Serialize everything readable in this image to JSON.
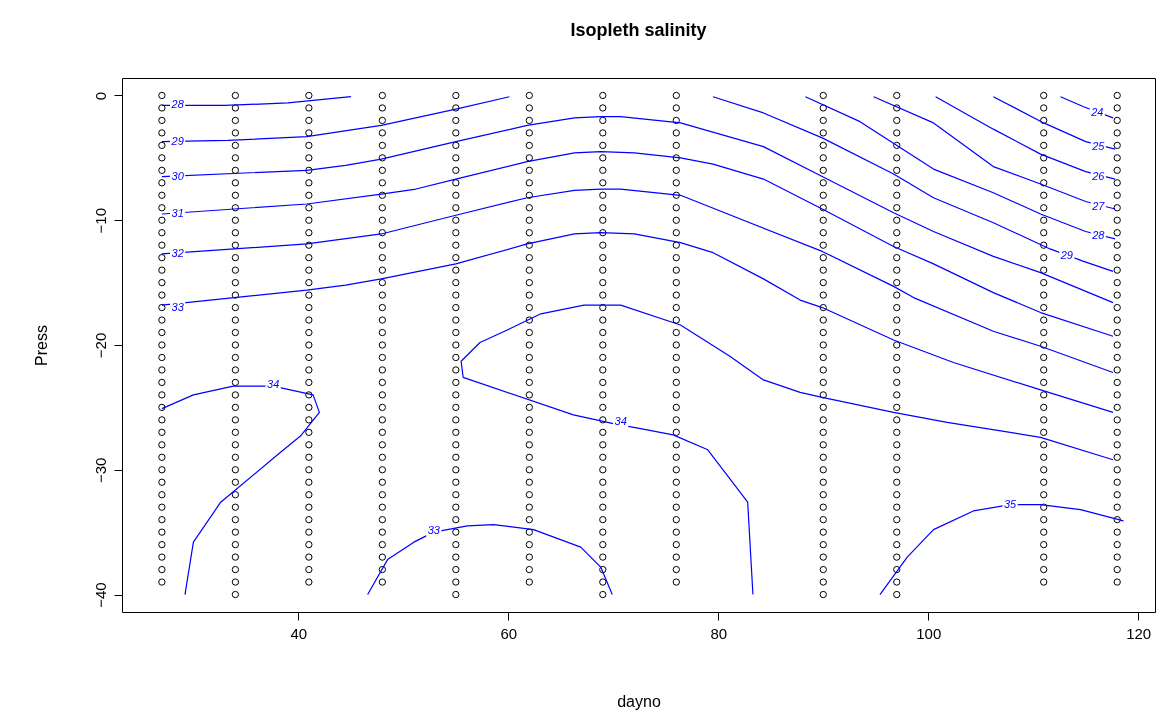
{
  "chart_data": {
    "type": "scatter",
    "title": "Isopleth salinity",
    "xlabel": "dayno",
    "ylabel": "Press",
    "xlim": [
      23.2,
      121.6
    ],
    "ylim": [
      -41.4,
      1.4
    ],
    "xticks": [
      40,
      60,
      80,
      100,
      120
    ],
    "yticks": [
      0,
      -10,
      -20,
      -30,
      -40
    ],
    "grid": false,
    "legend": false,
    "marker": "circle",
    "series": [
      {
        "color": "#000000",
        "x": [
          27,
          27,
          27,
          27,
          27,
          27,
          27,
          27,
          27,
          27,
          27,
          27,
          27,
          27,
          27,
          27,
          27,
          27,
          27,
          27,
          27,
          27,
          27,
          27,
          27,
          27,
          27,
          27,
          27,
          27,
          27,
          27,
          27,
          27,
          27,
          27,
          27,
          27,
          27,
          27
        ],
        "values": [
          0,
          -1,
          -2,
          -3,
          -4,
          -5,
          -6,
          -7,
          -8,
          -9,
          -10,
          -11,
          -12,
          -13,
          -14,
          -15,
          -16,
          -17,
          -18,
          -19,
          -20,
          -21,
          -22,
          -23,
          -24,
          -25,
          -26,
          -27,
          -28,
          -29,
          -30,
          -31,
          -32,
          -33,
          -34,
          -35,
          -36,
          -37,
          -38,
          -39
        ]
      },
      {
        "color": "#000000",
        "x": [
          34,
          34,
          34,
          34,
          34,
          34,
          34,
          34,
          34,
          34,
          34,
          34,
          34,
          34,
          34,
          34,
          34,
          34,
          34,
          34,
          34,
          34,
          34,
          34,
          34,
          34,
          34,
          34,
          34,
          34,
          34,
          34,
          34,
          34,
          34,
          34,
          34,
          34,
          34,
          34,
          34
        ],
        "values": [
          0,
          -1,
          -2,
          -3,
          -4,
          -5,
          -6,
          -7,
          -8,
          -9,
          -10,
          -11,
          -12,
          -13,
          -14,
          -15,
          -16,
          -17,
          -18,
          -19,
          -20,
          -21,
          -22,
          -23,
          -24,
          -25,
          -26,
          -27,
          -28,
          -29,
          -30,
          -31,
          -32,
          -33,
          -34,
          -35,
          -36,
          -37,
          -38,
          -39,
          -40
        ]
      },
      {
        "color": "#000000",
        "x": [
          41,
          41,
          41,
          41,
          41,
          41,
          41,
          41,
          41,
          41,
          41,
          41,
          41,
          41,
          41,
          41,
          41,
          41,
          41,
          41,
          41,
          41,
          41,
          41,
          41,
          41,
          41,
          41,
          41,
          41,
          41,
          41,
          41,
          41,
          41,
          41,
          41,
          41,
          41,
          41
        ],
        "values": [
          0,
          -1,
          -2,
          -3,
          -4,
          -5,
          -6,
          -7,
          -8,
          -9,
          -10,
          -11,
          -12,
          -13,
          -14,
          -15,
          -16,
          -17,
          -18,
          -19,
          -20,
          -21,
          -22,
          -23,
          -24,
          -25,
          -26,
          -27,
          -28,
          -29,
          -30,
          -31,
          -32,
          -33,
          -34,
          -35,
          -36,
          -37,
          -38,
          -39
        ]
      },
      {
        "color": "#000000",
        "x": [
          48,
          48,
          48,
          48,
          48,
          48,
          48,
          48,
          48,
          48,
          48,
          48,
          48,
          48,
          48,
          48,
          48,
          48,
          48,
          48,
          48,
          48,
          48,
          48,
          48,
          48,
          48,
          48,
          48,
          48,
          48,
          48,
          48,
          48,
          48,
          48,
          48,
          48,
          48,
          48
        ],
        "values": [
          0,
          -1,
          -2,
          -3,
          -4,
          -5,
          -6,
          -7,
          -8,
          -9,
          -10,
          -11,
          -12,
          -13,
          -14,
          -15,
          -16,
          -17,
          -18,
          -19,
          -20,
          -21,
          -22,
          -23,
          -24,
          -25,
          -26,
          -27,
          -28,
          -29,
          -30,
          -31,
          -32,
          -33,
          -34,
          -35,
          -36,
          -37,
          -38,
          -39
        ]
      },
      {
        "color": "#000000",
        "x": [
          55,
          55,
          55,
          55,
          55,
          55,
          55,
          55,
          55,
          55,
          55,
          55,
          55,
          55,
          55,
          55,
          55,
          55,
          55,
          55,
          55,
          55,
          55,
          55,
          55,
          55,
          55,
          55,
          55,
          55,
          55,
          55,
          55,
          55,
          55,
          55,
          55,
          55,
          55,
          55,
          55
        ],
        "values": [
          0,
          -1,
          -2,
          -3,
          -4,
          -5,
          -6,
          -7,
          -8,
          -9,
          -10,
          -11,
          -12,
          -13,
          -14,
          -15,
          -16,
          -17,
          -18,
          -19,
          -20,
          -21,
          -22,
          -23,
          -24,
          -25,
          -26,
          -27,
          -28,
          -29,
          -30,
          -31,
          -32,
          -33,
          -34,
          -35,
          -36,
          -37,
          -38,
          -39,
          -40
        ]
      },
      {
        "color": "#000000",
        "x": [
          62,
          62,
          62,
          62,
          62,
          62,
          62,
          62,
          62,
          62,
          62,
          62,
          62,
          62,
          62,
          62,
          62,
          62,
          62,
          62,
          62,
          62,
          62,
          62,
          62,
          62,
          62,
          62,
          62,
          62,
          62,
          62,
          62,
          62,
          62,
          62,
          62,
          62,
          62,
          62
        ],
        "values": [
          0,
          -1,
          -2,
          -3,
          -4,
          -5,
          -6,
          -7,
          -8,
          -9,
          -10,
          -11,
          -12,
          -13,
          -14,
          -15,
          -16,
          -17,
          -18,
          -19,
          -20,
          -21,
          -22,
          -23,
          -24,
          -25,
          -26,
          -27,
          -28,
          -29,
          -30,
          -31,
          -32,
          -33,
          -34,
          -35,
          -36,
          -37,
          -38,
          -39
        ]
      },
      {
        "color": "#000000",
        "x": [
          69,
          69,
          69,
          69,
          69,
          69,
          69,
          69,
          69,
          69,
          69,
          69,
          69,
          69,
          69,
          69,
          69,
          69,
          69,
          69,
          69,
          69,
          69,
          69,
          69,
          69,
          69,
          69,
          69,
          69,
          69,
          69,
          69,
          69,
          69,
          69,
          69,
          69,
          69,
          69,
          69
        ],
        "values": [
          0,
          -1,
          -2,
          -3,
          -4,
          -5,
          -6,
          -7,
          -8,
          -9,
          -10,
          -11,
          -12,
          -13,
          -14,
          -15,
          -16,
          -17,
          -18,
          -19,
          -20,
          -21,
          -22,
          -23,
          -24,
          -25,
          -26,
          -27,
          -28,
          -29,
          -30,
          -31,
          -32,
          -33,
          -34,
          -35,
          -36,
          -37,
          -38,
          -39,
          -40
        ]
      },
      {
        "color": "#000000",
        "x": [
          76,
          76,
          76,
          76,
          76,
          76,
          76,
          76,
          76,
          76,
          76,
          76,
          76,
          76,
          76,
          76,
          76,
          76,
          76,
          76,
          76,
          76,
          76,
          76,
          76,
          76,
          76,
          76,
          76,
          76,
          76,
          76,
          76,
          76,
          76,
          76,
          76,
          76,
          76,
          76
        ],
        "values": [
          0,
          -1,
          -2,
          -3,
          -4,
          -5,
          -6,
          -7,
          -8,
          -9,
          -10,
          -11,
          -12,
          -13,
          -14,
          -15,
          -16,
          -17,
          -18,
          -19,
          -20,
          -21,
          -22,
          -23,
          -24,
          -25,
          -26,
          -27,
          -28,
          -29,
          -30,
          -31,
          -32,
          -33,
          -34,
          -35,
          -36,
          -37,
          -38,
          -39
        ]
      },
      {
        "color": "#000000",
        "x": [
          90,
          90,
          90,
          90,
          90,
          90,
          90,
          90,
          90,
          90,
          90,
          90,
          90,
          90,
          90,
          90,
          90,
          90,
          90,
          90,
          90,
          90,
          90,
          90,
          90,
          90,
          90,
          90,
          90,
          90,
          90,
          90,
          90,
          90,
          90,
          90,
          90,
          90,
          90,
          90,
          90
        ],
        "values": [
          0,
          -1,
          -2,
          -3,
          -4,
          -5,
          -6,
          -7,
          -8,
          -9,
          -10,
          -11,
          -12,
          -13,
          -14,
          -15,
          -16,
          -17,
          -18,
          -19,
          -20,
          -21,
          -22,
          -23,
          -24,
          -25,
          -26,
          -27,
          -28,
          -29,
          -30,
          -31,
          -32,
          -33,
          -34,
          -35,
          -36,
          -37,
          -38,
          -39,
          -40
        ]
      },
      {
        "color": "#000000",
        "x": [
          97,
          97,
          97,
          97,
          97,
          97,
          97,
          97,
          97,
          97,
          97,
          97,
          97,
          97,
          97,
          97,
          97,
          97,
          97,
          97,
          97,
          97,
          97,
          97,
          97,
          97,
          97,
          97,
          97,
          97,
          97,
          97,
          97,
          97,
          97,
          97,
          97,
          97,
          97,
          97,
          97
        ],
        "values": [
          0,
          -1,
          -2,
          -3,
          -4,
          -5,
          -6,
          -7,
          -8,
          -9,
          -10,
          -11,
          -12,
          -13,
          -14,
          -15,
          -16,
          -17,
          -18,
          -19,
          -20,
          -21,
          -22,
          -23,
          -24,
          -25,
          -26,
          -27,
          -28,
          -29,
          -30,
          -31,
          -32,
          -33,
          -34,
          -35,
          -36,
          -37,
          -38,
          -39,
          -40
        ]
      },
      {
        "color": "#000000",
        "x": [
          111,
          111,
          111,
          111,
          111,
          111,
          111,
          111,
          111,
          111,
          111,
          111,
          111,
          111,
          111,
          111,
          111,
          111,
          111,
          111,
          111,
          111,
          111,
          111,
          111,
          111,
          111,
          111,
          111,
          111,
          111,
          111,
          111,
          111,
          111,
          111,
          111,
          111,
          111,
          111
        ],
        "values": [
          0,
          -1,
          -2,
          -3,
          -4,
          -5,
          -6,
          -7,
          -8,
          -9,
          -10,
          -11,
          -12,
          -13,
          -14,
          -15,
          -16,
          -17,
          -18,
          -19,
          -20,
          -21,
          -22,
          -23,
          -24,
          -25,
          -26,
          -27,
          -28,
          -29,
          -30,
          -31,
          -32,
          -33,
          -34,
          -35,
          -36,
          -37,
          -38,
          -39
        ]
      },
      {
        "color": "#000000",
        "x": [
          118,
          118,
          118,
          118,
          118,
          118,
          118,
          118,
          118,
          118,
          118,
          118,
          118,
          118,
          118,
          118,
          118,
          118,
          118,
          118,
          118,
          118,
          118,
          118,
          118,
          118,
          118,
          118,
          118,
          118,
          118,
          118,
          118,
          118,
          118,
          118,
          118,
          118,
          118,
          118
        ],
        "values": [
          0,
          -1,
          -2,
          -3,
          -4,
          -5,
          -6,
          -7,
          -8,
          -9,
          -10,
          -11,
          -12,
          -13,
          -14,
          -15,
          -16,
          -17,
          -18,
          -19,
          -20,
          -21,
          -22,
          -23,
          -24,
          -25,
          -26,
          -27,
          -28,
          -29,
          -30,
          -31,
          -32,
          -33,
          -34,
          -35,
          -36,
          -37,
          -38,
          -39
        ]
      },
      {
        "type": "line",
        "marker": "none",
        "color": "#0000ff",
        "x": [
          27,
          33,
          39,
          45
        ],
        "values": [
          -0.8,
          -0.8,
          -0.6,
          -0.1
        ]
      },
      {
        "type": "line",
        "marker": "none",
        "color": "#0000ff",
        "x": [
          27,
          33.3,
          40.8,
          47.9,
          55,
          60.1
        ],
        "values": [
          -3.7,
          -3.6,
          -3.3,
          -2.4,
          -1.1,
          -0.1
        ]
      },
      {
        "type": "line",
        "marker": "none",
        "color": "#0000ff",
        "x": [
          27,
          40.8,
          44.5,
          47.9,
          55,
          61.8,
          66.3,
          68.8,
          70.7,
          76.4,
          84.3,
          89.9,
          96.7,
          100.5,
          106.2,
          110.7,
          117.6
        ],
        "values": [
          -6.5,
          -6,
          -5.6,
          -5.1,
          -3.7,
          -2.4,
          -1.8,
          -1.7,
          -1.7,
          -2.2,
          -4.1,
          -6.5,
          -9.4,
          -10.9,
          -12.9,
          -14.2,
          -16.6
        ]
      },
      {
        "type": "line",
        "marker": "none",
        "color": "#0000ff",
        "x": [
          27,
          40.8,
          47.9,
          51.2,
          55,
          61.8,
          66.3,
          68.8,
          72,
          76.4,
          79.5,
          84.3,
          89.9,
          96.7,
          100.5,
          106.2,
          110.7,
          117.6
        ],
        "values": [
          -9.5,
          -8.7,
          -7.9,
          -7.5,
          -6.7,
          -5.3,
          -4.6,
          -4.5,
          -4.6,
          -5,
          -5.5,
          -6.7,
          -9.1,
          -12.1,
          -13.5,
          -15.8,
          -17.4,
          -19.3
        ]
      },
      {
        "type": "line",
        "marker": "none",
        "color": "#0000ff",
        "x": [
          27,
          40.8,
          47.9,
          51.2,
          55,
          61.8,
          66.3,
          68.8,
          70.7,
          76.4,
          89.9,
          96.7,
          98.6,
          106.2,
          110.7,
          117.6
        ],
        "values": [
          -12.7,
          -11.9,
          -11.1,
          -10.4,
          -9.6,
          -8.2,
          -7.6,
          -7.5,
          -7.5,
          -8,
          -12.5,
          -15.3,
          -16.2,
          -18.9,
          -20.1,
          -22.2
        ]
      },
      {
        "type": "line",
        "marker": "none",
        "color": "#0000ff",
        "x": [
          27,
          40.8,
          44.5,
          47.9,
          55,
          61.8,
          66.3,
          68.8,
          72,
          76.4,
          79.5,
          84.3,
          87.8,
          89.9,
          96.7,
          102.4,
          110.7,
          117.6
        ],
        "values": [
          -16.8,
          -15.6,
          -15.2,
          -14.7,
          -13.5,
          -11.9,
          -11.1,
          -11,
          -11.1,
          -11.8,
          -12.6,
          -14.7,
          -16.4,
          -17,
          -19.6,
          -21.4,
          -23.6,
          -25.4
        ]
      },
      {
        "type": "line",
        "marker": "none",
        "color": "#0000ff",
        "x": [
          83.3,
          82.8,
          79,
          75.7,
          72.6,
          70,
          66.2,
          55.7,
          55.5,
          57.3,
          59.9,
          63.1,
          67.2,
          68.8,
          70.7,
          76.4,
          81.1,
          84.3,
          87.8,
          89.9,
          96.7,
          101.8,
          110.7,
          117.6
        ],
        "values": [
          -40,
          -32.6,
          -28.4,
          -27.2,
          -26.7,
          -26.3,
          -25.6,
          -22.6,
          -21.3,
          -19.8,
          -18.8,
          -17.5,
          -16.8,
          -16.8,
          -16.8,
          -18.4,
          -20.9,
          -22.8,
          -23.8,
          -24.2,
          -25.4,
          -26.2,
          -27.4,
          -29.2
        ]
      },
      {
        "type": "line",
        "marker": "none",
        "color": "#0000ff",
        "x": [
          27,
          30,
          33.8,
          37.6,
          41.4,
          42,
          40.2,
          38.3,
          32.6,
          30,
          29.2
        ],
        "values": [
          -25.1,
          -24,
          -23.3,
          -23.3,
          -24,
          -25.4,
          -27.3,
          -28.6,
          -32.6,
          -35.8,
          -40
        ]
      },
      {
        "type": "line",
        "marker": "none",
        "color": "#0000ff",
        "x": [
          46.6,
          48.5,
          51,
          52.9,
          56.1,
          58.6,
          62.4,
          66.9,
          68.8,
          69.9
        ],
        "values": [
          -40,
          -37.2,
          -35.8,
          -35,
          -34.5,
          -34.4,
          -34.8,
          -36.2,
          -37.8,
          -40
        ]
      },
      {
        "type": "line",
        "marker": "none",
        "color": "#0000ff",
        "x": [
          95.4,
          98,
          100.5,
          104.3,
          107.8,
          110.7,
          114.5,
          118.6
        ],
        "values": [
          -40,
          -37,
          -34.8,
          -33.3,
          -32.8,
          -32.8,
          -33.2,
          -34.1
        ]
      },
      {
        "type": "line",
        "marker": "none",
        "color": "#0000ff",
        "x": [
          112.6,
          114.8,
          117.6
        ],
        "values": [
          -0.1,
          -0.9,
          -1.8
        ]
      },
      {
        "type": "line",
        "marker": "none",
        "color": "#0000ff",
        "x": [
          106.2,
          111,
          115,
          117.8
        ],
        "values": [
          -0.1,
          -2.2,
          -3.7,
          -4.3
        ]
      },
      {
        "type": "line",
        "marker": "none",
        "color": "#0000ff",
        "x": [
          100.7,
          106.2,
          110.7,
          115,
          117.8
        ],
        "values": [
          -0.1,
          -2.7,
          -4.7,
          -6.1,
          -6.7
        ]
      },
      {
        "type": "line",
        "marker": "none",
        "color": "#0000ff",
        "x": [
          94.8,
          100.5,
          106.2,
          110.7,
          115,
          117.8
        ],
        "values": [
          -0.1,
          -2.2,
          -5.7,
          -7.1,
          -8.5,
          -9.1
        ]
      },
      {
        "type": "line",
        "marker": "none",
        "color": "#0000ff",
        "x": [
          88.3,
          93.5,
          100.5,
          106.2,
          110.7,
          115,
          117.8
        ],
        "values": [
          -0.1,
          -2.1,
          -5.9,
          -7.8,
          -9.5,
          -10.9,
          -11.5
        ]
      },
      {
        "type": "line",
        "marker": "none",
        "color": "#0000ff",
        "x": [
          79.5,
          84.3,
          89.9,
          96.7,
          100.5,
          106.2,
          111.6,
          114.8,
          117.6
        ],
        "values": [
          -0.1,
          -1.4,
          -3.4,
          -6.3,
          -8.2,
          -10.2,
          -12.3,
          -13.3,
          -14.1
        ]
      }
    ],
    "annotations": [
      {
        "text": "28",
        "x": 28.5,
        "y": -0.8
      },
      {
        "text": "29",
        "x": 28.5,
        "y": -3.7
      },
      {
        "text": "30",
        "x": 28.5,
        "y": -6.5
      },
      {
        "text": "31",
        "x": 28.5,
        "y": -9.5
      },
      {
        "text": "32",
        "x": 28.5,
        "y": -12.7
      },
      {
        "text": "33",
        "x": 28.5,
        "y": -17
      },
      {
        "text": "34",
        "x": 37.6,
        "y": -23.2
      },
      {
        "text": "34",
        "x": 70.7,
        "y": -26.2
      },
      {
        "text": "33",
        "x": 52.9,
        "y": -34.9
      },
      {
        "text": "35",
        "x": 107.8,
        "y": -32.8
      },
      {
        "text": "24",
        "x": 116.1,
        "y": -1.4
      },
      {
        "text": "25",
        "x": 116.2,
        "y": -4.1
      },
      {
        "text": "26",
        "x": 116.2,
        "y": -6.5
      },
      {
        "text": "27",
        "x": 116.2,
        "y": -8.9
      },
      {
        "text": "28",
        "x": 116.2,
        "y": -11.3
      },
      {
        "text": "29",
        "x": 113.2,
        "y": -12.9
      }
    ]
  }
}
